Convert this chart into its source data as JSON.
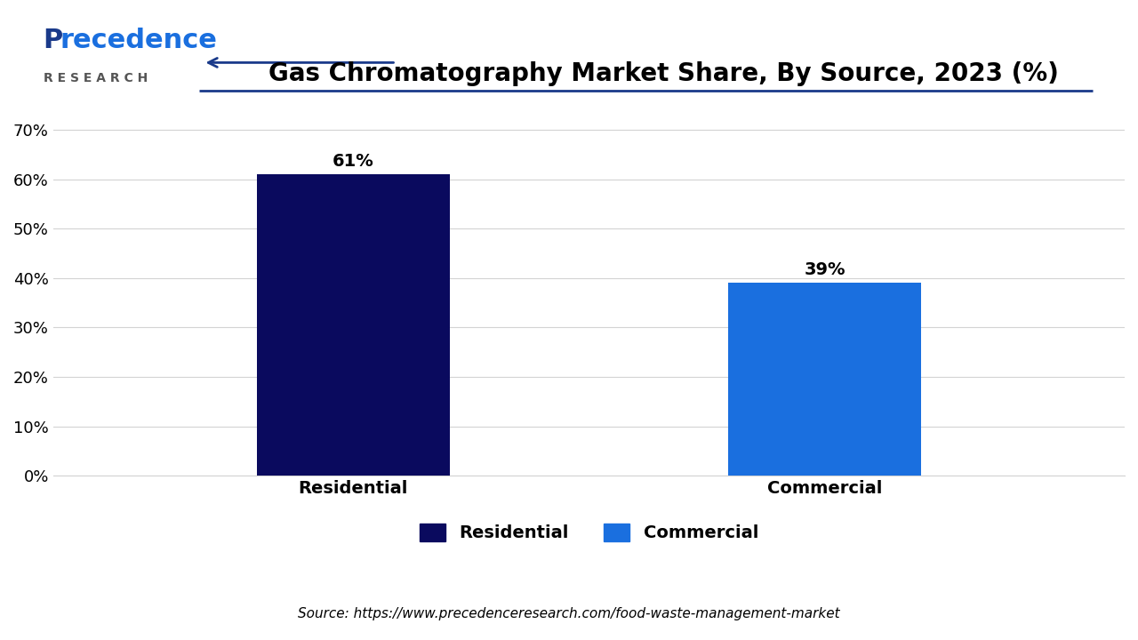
{
  "title": "Gas Chromatography Market Share, By Source, 2023 (%)",
  "categories": [
    "Residential",
    "Commercial"
  ],
  "values": [
    61,
    39
  ],
  "bar_colors": [
    "#0a0a5e",
    "#1a6fdf"
  ],
  "bar_labels": [
    "61%",
    "39%"
  ],
  "yticks": [
    0,
    10,
    20,
    30,
    40,
    50,
    60,
    70
  ],
  "ytick_labels": [
    "0%",
    "10%",
    "20%",
    "30%",
    "40%",
    "50%",
    "60%",
    "70%"
  ],
  "ylim": [
    0,
    75
  ],
  "source_text": "Source: https://www.precedenceresearch.com/food-waste-management-market",
  "legend_labels": [
    "Residential",
    "Commercial"
  ],
  "legend_colors": [
    "#0a0a5e",
    "#1a6fdf"
  ],
  "background_color": "#ffffff",
  "title_fontsize": 20,
  "label_fontsize": 14,
  "tick_fontsize": 13,
  "bar_label_fontsize": 14,
  "arrow_color": "#1a3a8a",
  "logo_p_color": "#1a3a8a",
  "logo_recedence_color": "#1a6fdf",
  "logo_research_color": "#555555"
}
